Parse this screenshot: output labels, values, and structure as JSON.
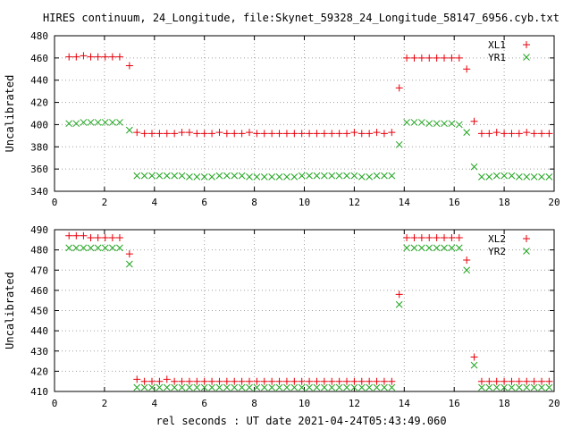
{
  "title": "HIRES continuum, 24_Longitude, file:Skynet_59328_24_Longitude_58147_6956.cyb.txt",
  "colors": {
    "red": "#e8000b",
    "green": "#1fa51f",
    "grid": "#a0a0a0"
  },
  "chart_data": [
    {
      "type": "scatter",
      "title": "",
      "xlabel": "",
      "ylabel": "Uncalibrated",
      "xlim": [
        0,
        20
      ],
      "ylim": [
        340,
        480
      ],
      "xticks": [
        0,
        2,
        4,
        6,
        8,
        10,
        12,
        14,
        16,
        18,
        20
      ],
      "yticks": [
        340,
        360,
        380,
        400,
        420,
        440,
        460,
        480
      ],
      "grid": true,
      "legend": "top-right",
      "series": [
        {
          "name": "XL1",
          "marker": "plus",
          "color": "#e8000b",
          "x": [
            0.58,
            0.87,
            1.16,
            1.45,
            1.74,
            2.03,
            2.32,
            2.61,
            3.0,
            3.3,
            3.6,
            3.9,
            4.2,
            4.5,
            4.8,
            5.1,
            5.4,
            5.7,
            6.0,
            6.3,
            6.6,
            6.9,
            7.2,
            7.5,
            7.8,
            8.1,
            8.4,
            8.7,
            9.0,
            9.3,
            9.6,
            9.9,
            10.2,
            10.5,
            10.8,
            11.1,
            11.4,
            11.7,
            12.0,
            12.3,
            12.6,
            12.9,
            13.2,
            13.5,
            13.8,
            14.1,
            14.4,
            14.7,
            15.0,
            15.3,
            15.6,
            15.9,
            16.2,
            16.5,
            16.8,
            17.1,
            17.4,
            17.7,
            18.0,
            18.3,
            18.6,
            18.9,
            19.2,
            19.5,
            19.8
          ],
          "y": [
            461,
            461,
            462,
            461,
            461,
            461,
            461,
            461,
            453,
            393,
            392,
            392,
            392,
            392,
            392,
            393,
            393,
            392,
            392,
            392,
            393,
            392,
            392,
            392,
            393,
            392,
            392,
            392,
            392,
            392,
            392,
            392,
            392,
            392,
            392,
            392,
            392,
            392,
            393,
            392,
            392,
            393,
            392,
            393,
            433,
            460,
            460,
            460,
            460,
            460,
            460,
            460,
            460,
            450,
            403,
            392,
            392,
            393,
            392,
            392,
            392,
            393,
            392,
            392,
            392
          ]
        },
        {
          "name": "YR1",
          "marker": "cross",
          "color": "#1fa51f",
          "x": [
            0.58,
            0.87,
            1.16,
            1.45,
            1.74,
            2.03,
            2.32,
            2.61,
            3.0,
            3.3,
            3.6,
            3.9,
            4.2,
            4.5,
            4.8,
            5.1,
            5.4,
            5.7,
            6.0,
            6.3,
            6.6,
            6.9,
            7.2,
            7.5,
            7.8,
            8.1,
            8.4,
            8.7,
            9.0,
            9.3,
            9.6,
            9.9,
            10.2,
            10.5,
            10.8,
            11.1,
            11.4,
            11.7,
            12.0,
            12.3,
            12.6,
            12.9,
            13.2,
            13.5,
            13.8,
            14.1,
            14.4,
            14.7,
            15.0,
            15.3,
            15.6,
            15.9,
            16.2,
            16.5,
            16.8,
            17.1,
            17.4,
            17.7,
            18.0,
            18.3,
            18.6,
            18.9,
            19.2,
            19.5,
            19.8
          ],
          "y": [
            401,
            401,
            402,
            402,
            402,
            402,
            402,
            402,
            395,
            354,
            354,
            354,
            354,
            354,
            354,
            354,
            353,
            353,
            353,
            353,
            354,
            354,
            354,
            354,
            353,
            353,
            353,
            353,
            353,
            353,
            353,
            354,
            354,
            354,
            354,
            354,
            354,
            354,
            354,
            353,
            353,
            354,
            354,
            354,
            382,
            402,
            402,
            402,
            401,
            401,
            401,
            401,
            400,
            393,
            362,
            353,
            353,
            354,
            354,
            354,
            353,
            353,
            353,
            353,
            353
          ]
        }
      ]
    },
    {
      "type": "scatter",
      "title": "",
      "xlabel": "rel seconds : UT date 2021-04-24T05:43:49.060",
      "ylabel": "Uncalibrated",
      "xlim": [
        0,
        20
      ],
      "ylim": [
        410,
        490
      ],
      "xticks": [
        0,
        2,
        4,
        6,
        8,
        10,
        12,
        14,
        16,
        18,
        20
      ],
      "yticks": [
        410,
        420,
        430,
        440,
        450,
        460,
        470,
        480,
        490
      ],
      "grid": true,
      "legend": "top-right",
      "series": [
        {
          "name": "XL2",
          "marker": "plus",
          "color": "#e8000b",
          "x": [
            0.58,
            0.87,
            1.16,
            1.45,
            1.74,
            2.03,
            2.32,
            2.61,
            3.0,
            3.3,
            3.6,
            3.9,
            4.2,
            4.5,
            4.8,
            5.1,
            5.4,
            5.7,
            6.0,
            6.3,
            6.6,
            6.9,
            7.2,
            7.5,
            7.8,
            8.1,
            8.4,
            8.7,
            9.0,
            9.3,
            9.6,
            9.9,
            10.2,
            10.5,
            10.8,
            11.1,
            11.4,
            11.7,
            12.0,
            12.3,
            12.6,
            12.9,
            13.2,
            13.5,
            13.8,
            14.1,
            14.4,
            14.7,
            15.0,
            15.3,
            15.6,
            15.9,
            16.2,
            16.5,
            16.8,
            17.1,
            17.4,
            17.7,
            18.0,
            18.3,
            18.6,
            18.9,
            19.2,
            19.5,
            19.8
          ],
          "y": [
            487,
            487,
            487,
            486,
            486,
            486,
            486,
            486,
            478,
            416,
            415,
            415,
            415,
            416,
            415,
            415,
            415,
            415,
            415,
            415,
            415,
            415,
            415,
            415,
            415,
            415,
            415,
            415,
            415,
            415,
            415,
            415,
            415,
            415,
            415,
            415,
            415,
            415,
            415,
            415,
            415,
            415,
            415,
            415,
            458,
            486,
            486,
            486,
            486,
            486,
            486,
            486,
            486,
            475,
            427,
            415,
            415,
            415,
            415,
            415,
            415,
            415,
            415,
            415,
            415
          ]
        },
        {
          "name": "YR2",
          "marker": "cross",
          "color": "#1fa51f",
          "x": [
            0.58,
            0.87,
            1.16,
            1.45,
            1.74,
            2.03,
            2.32,
            2.61,
            3.0,
            3.3,
            3.6,
            3.9,
            4.2,
            4.5,
            4.8,
            5.1,
            5.4,
            5.7,
            6.0,
            6.3,
            6.6,
            6.9,
            7.2,
            7.5,
            7.8,
            8.1,
            8.4,
            8.7,
            9.0,
            9.3,
            9.6,
            9.9,
            10.2,
            10.5,
            10.8,
            11.1,
            11.4,
            11.7,
            12.0,
            12.3,
            12.6,
            12.9,
            13.2,
            13.5,
            13.8,
            14.1,
            14.4,
            14.7,
            15.0,
            15.3,
            15.6,
            15.9,
            16.2,
            16.5,
            16.8,
            17.1,
            17.4,
            17.7,
            18.0,
            18.3,
            18.6,
            18.9,
            19.2,
            19.5,
            19.8
          ],
          "y": [
            481,
            481,
            481,
            481,
            481,
            481,
            481,
            481,
            473,
            412,
            412,
            412,
            412,
            412,
            412,
            412,
            412,
            412,
            412,
            412,
            412,
            412,
            412,
            412,
            412,
            412,
            412,
            412,
            412,
            412,
            412,
            412,
            412,
            412,
            412,
            412,
            412,
            412,
            412,
            412,
            412,
            412,
            412,
            412,
            453,
            481,
            481,
            481,
            481,
            481,
            481,
            481,
            481,
            470,
            423,
            412,
            412,
            412,
            412,
            412,
            412,
            412,
            412,
            412,
            412
          ]
        }
      ]
    }
  ]
}
